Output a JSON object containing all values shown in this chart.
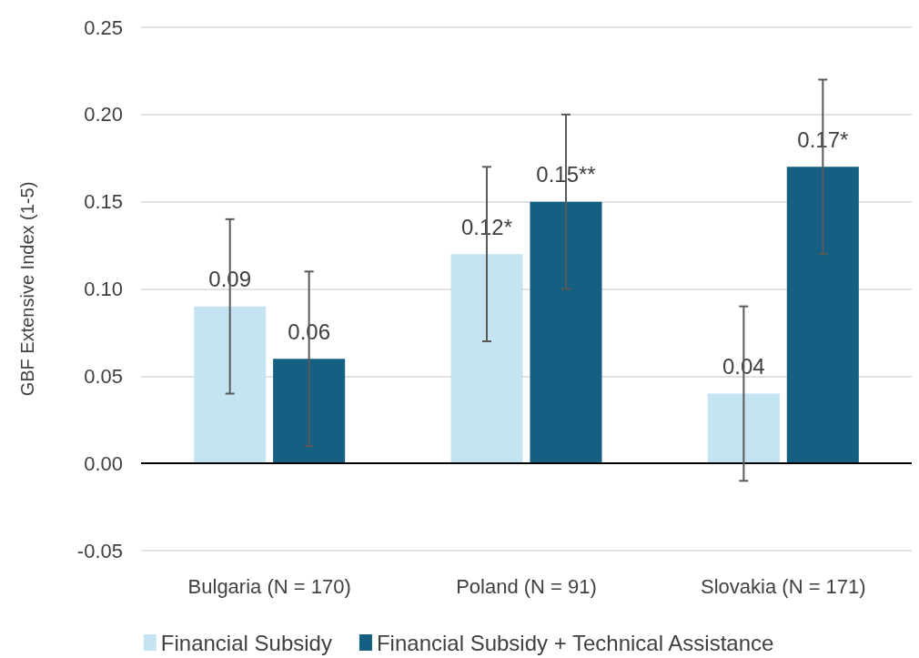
{
  "chart_data": {
    "type": "bar",
    "ylabel": "GBF Extensive Index (1-5)",
    "categories": [
      "Bulgaria (N = 170)",
      "Poland (N = 91)",
      "Slovakia (N = 171)"
    ],
    "series": [
      {
        "name": "Financial Subsidy",
        "color": "#c5e4f3",
        "values": [
          0.09,
          0.12,
          0.04
        ],
        "errors": [
          0.05,
          0.05,
          0.05
        ],
        "value_labels": [
          "0.09",
          "0.12*",
          "0.04"
        ]
      },
      {
        "name": "Financial Subsidy + Technical Assistance",
        "color": "#155f82",
        "values": [
          0.06,
          0.15,
          0.17
        ],
        "errors": [
          0.05,
          0.05,
          0.05
        ],
        "value_labels": [
          "0.06",
          "0.15**",
          "0.17*"
        ]
      }
    ],
    "ylim": [
      -0.05,
      0.25
    ],
    "yticks": [
      {
        "value": -0.05,
        "label": "-0.05"
      },
      {
        "value": 0,
        "label": "0.00"
      },
      {
        "value": 0.05,
        "label": "0.05"
      },
      {
        "value": 0.1,
        "label": "0.10"
      },
      {
        "value": 0.15,
        "label": "0.15"
      },
      {
        "value": 0.2,
        "label": "0.20"
      },
      {
        "value": 0.25,
        "label": "0.25"
      }
    ],
    "grid": "y",
    "legend": "bottom"
  }
}
